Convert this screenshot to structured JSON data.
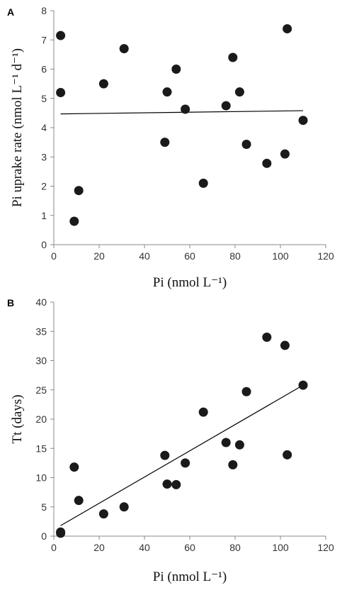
{
  "chart_data": [
    {
      "type": "scatter",
      "panel_label": "A",
      "xlabel": "Pi (nmol L⁻¹)",
      "ylabel": "Pi uprake rate (nmol L⁻¹ d⁻¹)",
      "xlim": [
        0,
        120
      ],
      "ylim": [
        0,
        8
      ],
      "xticks": [
        "0",
        "20",
        "40",
        "60",
        "80",
        "100",
        "120"
      ],
      "yticks": [
        "0",
        "1",
        "2",
        "3",
        "4",
        "5",
        "6",
        "7",
        "8"
      ],
      "grid": false,
      "points": [
        {
          "x": 3,
          "y": 7.15
        },
        {
          "x": 3,
          "y": 5.2
        },
        {
          "x": 9,
          "y": 0.8
        },
        {
          "x": 11,
          "y": 1.85
        },
        {
          "x": 22,
          "y": 5.5
        },
        {
          "x": 31,
          "y": 6.7
        },
        {
          "x": 49,
          "y": 3.5
        },
        {
          "x": 50,
          "y": 5.22
        },
        {
          "x": 54,
          "y": 6.0
        },
        {
          "x": 58,
          "y": 4.63
        },
        {
          "x": 66,
          "y": 2.1
        },
        {
          "x": 76,
          "y": 4.75
        },
        {
          "x": 79,
          "y": 6.4
        },
        {
          "x": 82,
          "y": 5.22
        },
        {
          "x": 85,
          "y": 3.43
        },
        {
          "x": 94,
          "y": 2.78
        },
        {
          "x": 102,
          "y": 3.1
        },
        {
          "x": 103,
          "y": 7.38
        },
        {
          "x": 110,
          "y": 4.25
        }
      ],
      "trendline": {
        "x": [
          3,
          110
        ],
        "y": [
          4.47,
          4.58
        ]
      },
      "colors": {
        "marker": "#1a1a1a",
        "line": "#000000",
        "axis": "#888888"
      }
    },
    {
      "type": "scatter",
      "panel_label": "B",
      "xlabel": "Pi (nmol L⁻¹)",
      "ylabel": "Tt (days)",
      "xlim": [
        0,
        120
      ],
      "ylim": [
        0,
        40
      ],
      "xticks": [
        "0",
        "20",
        "40",
        "60",
        "80",
        "100",
        "120"
      ],
      "yticks": [
        "0",
        "5",
        "10",
        "15",
        "20",
        "25",
        "30",
        "35",
        "40"
      ],
      "grid": false,
      "points": [
        {
          "x": 3,
          "y": 0.5
        },
        {
          "x": 3,
          "y": 0.7
        },
        {
          "x": 9,
          "y": 11.8
        },
        {
          "x": 11,
          "y": 6.1
        },
        {
          "x": 22,
          "y": 3.8
        },
        {
          "x": 31,
          "y": 5.0
        },
        {
          "x": 49,
          "y": 13.8
        },
        {
          "x": 50,
          "y": 8.9
        },
        {
          "x": 54,
          "y": 8.8
        },
        {
          "x": 58,
          "y": 12.5
        },
        {
          "x": 66,
          "y": 21.2
        },
        {
          "x": 76,
          "y": 16.0
        },
        {
          "x": 79,
          "y": 12.2
        },
        {
          "x": 82,
          "y": 15.6
        },
        {
          "x": 85,
          "y": 24.7
        },
        {
          "x": 94,
          "y": 34.0
        },
        {
          "x": 102,
          "y": 32.6
        },
        {
          "x": 103,
          "y": 13.9
        },
        {
          "x": 110,
          "y": 25.8
        }
      ],
      "trendline": {
        "x": [
          3,
          110
        ],
        "y": [
          1.8,
          25.8
        ]
      },
      "colors": {
        "marker": "#1a1a1a",
        "line": "#000000",
        "axis": "#888888"
      }
    }
  ]
}
